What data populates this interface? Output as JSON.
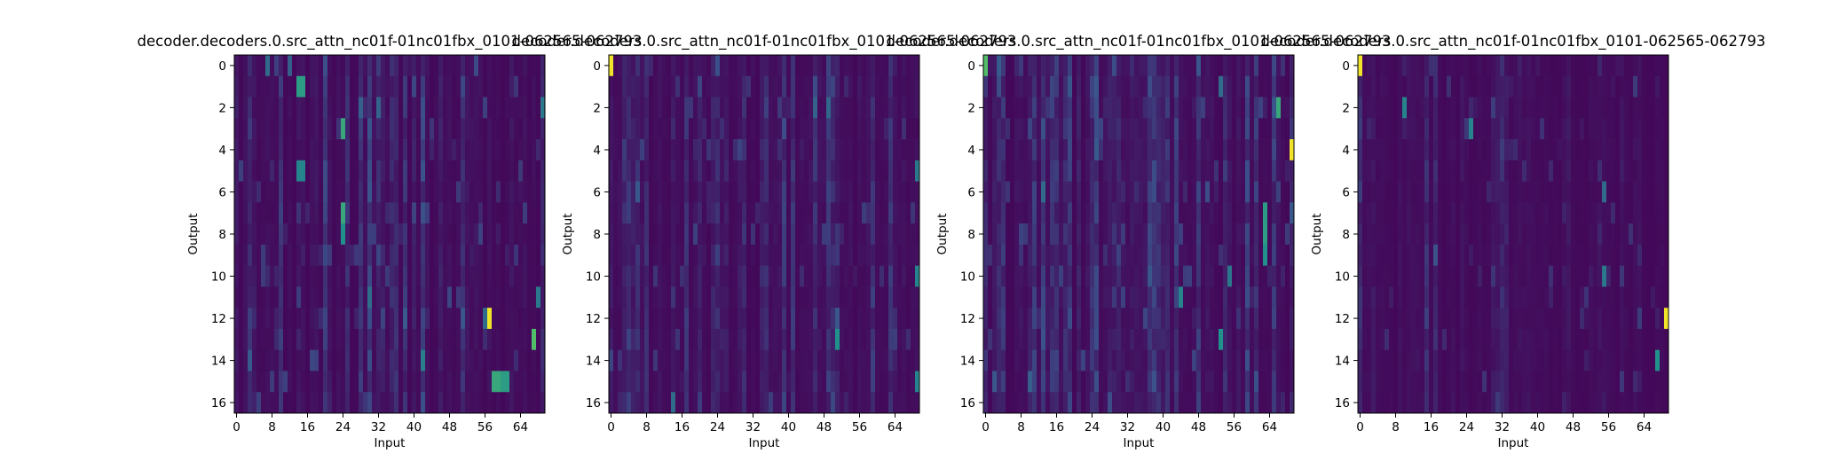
{
  "colors": {
    "background": "#ffffff",
    "axis": "#000000",
    "colormap": "viridis",
    "colormap_stops": [
      "#440154",
      "#3b528b",
      "#21918c",
      "#5ec962",
      "#fde725"
    ]
  },
  "chart_data": [
    {
      "type": "heatmap",
      "title": "decoder.decoders.0.src_attn_nc01f-01nc01fbx_0101-062565-062793",
      "xlabel": "Input",
      "ylabel": "Output",
      "rows": 17,
      "cols": 70,
      "xticks": [
        0,
        8,
        16,
        24,
        32,
        40,
        48,
        56,
        64
      ],
      "yticks": [
        0,
        2,
        4,
        6,
        8,
        10,
        12,
        14,
        16
      ],
      "colormap": "viridis",
      "value_range": [
        0,
        1
      ],
      "background_level": 0.02,
      "noise_level": 0.12,
      "seed": 11,
      "hotspots": [
        {
          "row": 0,
          "col": 7,
          "v": 0.35
        },
        {
          "row": 0,
          "col": 12,
          "v": 0.3
        },
        {
          "row": 1,
          "col": 14,
          "v": 0.55
        },
        {
          "row": 1,
          "col": 15,
          "v": 0.55
        },
        {
          "row": 2,
          "col": 28,
          "v": 0.3
        },
        {
          "row": 2,
          "col": 69,
          "v": 0.4
        },
        {
          "row": 3,
          "col": 24,
          "v": 0.6
        },
        {
          "row": 5,
          "col": 14,
          "v": 0.45
        },
        {
          "row": 5,
          "col": 15,
          "v": 0.45
        },
        {
          "row": 7,
          "col": 24,
          "v": 0.6
        },
        {
          "row": 8,
          "col": 24,
          "v": 0.5
        },
        {
          "row": 11,
          "col": 68,
          "v": 0.4
        },
        {
          "row": 12,
          "col": 56,
          "v": 0.35
        },
        {
          "row": 12,
          "col": 57,
          "v": 0.98
        },
        {
          "row": 13,
          "col": 67,
          "v": 0.7
        },
        {
          "row": 15,
          "col": 58,
          "v": 0.6
        },
        {
          "row": 15,
          "col": 59,
          "v": 0.6
        },
        {
          "row": 15,
          "col": 60,
          "v": 0.55
        },
        {
          "row": 15,
          "col": 61,
          "v": 0.55
        }
      ]
    },
    {
      "type": "heatmap",
      "title": "decoder.decoders.0.src_attn_nc01f-01nc01fbx_0101-062565-062793",
      "xlabel": "Input",
      "ylabel": "Output",
      "rows": 17,
      "cols": 70,
      "xticks": [
        0,
        8,
        16,
        24,
        32,
        40,
        48,
        56,
        64
      ],
      "yticks": [
        0,
        2,
        4,
        6,
        8,
        10,
        12,
        14,
        16
      ],
      "colormap": "viridis",
      "value_range": [
        0,
        1
      ],
      "background_level": 0.02,
      "noise_level": 0.1,
      "seed": 23,
      "hotspots": [
        {
          "row": 0,
          "col": 0,
          "v": 0.98
        },
        {
          "row": 5,
          "col": 69,
          "v": 0.4
        },
        {
          "row": 10,
          "col": 69,
          "v": 0.45
        },
        {
          "row": 13,
          "col": 51,
          "v": 0.5
        },
        {
          "row": 15,
          "col": 69,
          "v": 0.45
        },
        {
          "row": 16,
          "col": 14,
          "v": 0.35
        }
      ]
    },
    {
      "type": "heatmap",
      "title": "decoder.decoders.0.src_attn_nc01f-01nc01fbx_0101-062565-062793",
      "xlabel": "Input",
      "ylabel": "Output",
      "rows": 17,
      "cols": 70,
      "xticks": [
        0,
        8,
        16,
        24,
        32,
        40,
        48,
        56,
        64
      ],
      "yticks": [
        0,
        2,
        4,
        6,
        8,
        10,
        12,
        14,
        16
      ],
      "colormap": "viridis",
      "value_range": [
        0,
        1
      ],
      "background_level": 0.02,
      "noise_level": 0.12,
      "seed": 37,
      "hotspots": [
        {
          "row": 0,
          "col": 0,
          "v": 0.7
        },
        {
          "row": 1,
          "col": 53,
          "v": 0.35
        },
        {
          "row": 2,
          "col": 66,
          "v": 0.6
        },
        {
          "row": 4,
          "col": 69,
          "v": 0.98
        },
        {
          "row": 6,
          "col": 13,
          "v": 0.35
        },
        {
          "row": 7,
          "col": 63,
          "v": 0.55
        },
        {
          "row": 8,
          "col": 63,
          "v": 0.55
        },
        {
          "row": 9,
          "col": 63,
          "v": 0.5
        },
        {
          "row": 10,
          "col": 55,
          "v": 0.4
        },
        {
          "row": 11,
          "col": 44,
          "v": 0.45
        },
        {
          "row": 13,
          "col": 53,
          "v": 0.5
        },
        {
          "row": 15,
          "col": 10,
          "v": 0.3
        }
      ]
    },
    {
      "type": "heatmap",
      "title": "decoder.decoders.0.src_attn_nc01f-01nc01fbx_0101-062565-062793",
      "xlabel": "Input",
      "ylabel": "Output",
      "rows": 17,
      "cols": 70,
      "xticks": [
        0,
        8,
        16,
        24,
        32,
        40,
        48,
        56,
        64
      ],
      "yticks": [
        0,
        2,
        4,
        6,
        8,
        10,
        12,
        14,
        16
      ],
      "colormap": "viridis",
      "value_range": [
        0,
        1
      ],
      "background_level": 0.02,
      "noise_level": 0.09,
      "seed": 51,
      "hotspots": [
        {
          "row": 0,
          "col": 0,
          "v": 0.98
        },
        {
          "row": 2,
          "col": 10,
          "v": 0.45
        },
        {
          "row": 3,
          "col": 25,
          "v": 0.45
        },
        {
          "row": 6,
          "col": 55,
          "v": 0.35
        },
        {
          "row": 10,
          "col": 55,
          "v": 0.4
        },
        {
          "row": 12,
          "col": 69,
          "v": 0.98
        },
        {
          "row": 14,
          "col": 67,
          "v": 0.5
        }
      ]
    }
  ]
}
